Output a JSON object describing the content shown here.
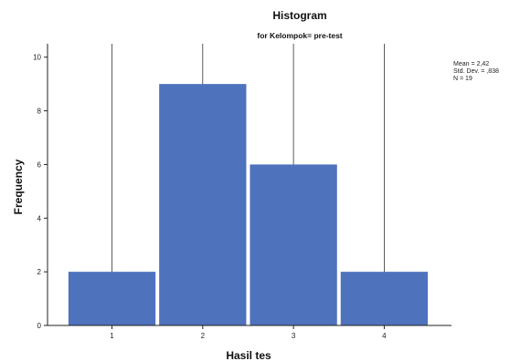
{
  "chart_data": {
    "type": "bar",
    "title": "Histogram",
    "subtitle": "for Kelompok= pre-test",
    "xlabel": "Hasil tes",
    "ylabel": "Frequency",
    "categories": [
      "1",
      "2",
      "3",
      "4"
    ],
    "values": [
      2,
      9,
      6,
      2
    ],
    "ylim": [
      0,
      10.5
    ],
    "yticks": [
      0,
      2,
      4,
      6,
      8,
      10
    ],
    "grid": false,
    "legend": "none",
    "bar_color": "#4f72bd",
    "stats": [
      "Mean = 2,42",
      "Std. Dev. = ,838",
      "N = 19"
    ]
  }
}
